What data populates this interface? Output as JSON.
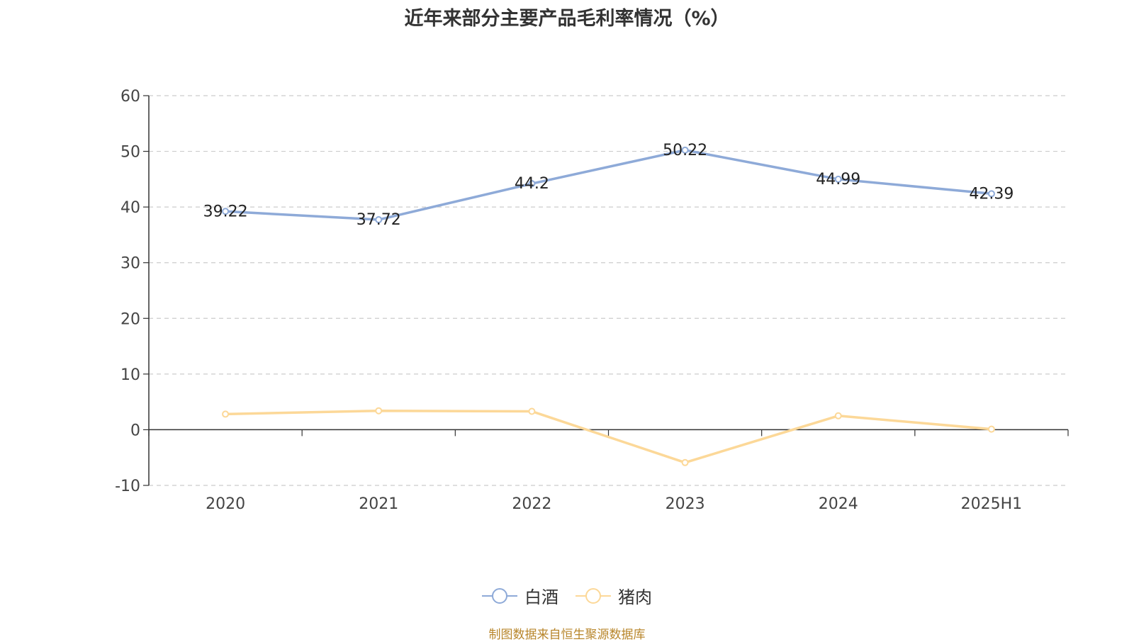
{
  "chart_data": {
    "type": "line",
    "title": "近年来部分主要产品毛利率情况（%）",
    "categories": [
      "2020",
      "2021",
      "2022",
      "2023",
      "2024",
      "2025H1"
    ],
    "series": [
      {
        "name": "白酒",
        "color": "#8eaad8",
        "values": [
          39.22,
          37.72,
          44.2,
          50.22,
          44.99,
          42.39
        ],
        "labels": [
          "39.22",
          "37.72",
          "44.2",
          "50.22",
          "44.99",
          "42.39"
        ],
        "show_labels": true
      },
      {
        "name": "猪肉",
        "color": "#fcd898",
        "values": [
          2.8,
          3.4,
          3.3,
          -5.9,
          2.5,
          0.1
        ],
        "show_labels": false
      }
    ],
    "yticks": [
      "60",
      "50",
      "40",
      "30",
      "20",
      "10",
      "0",
      "-10"
    ],
    "ylim": [
      -10,
      60
    ],
    "grid": true,
    "legend_position": "bottom-center"
  },
  "source_note": "制图数据来自恒生聚源数据库"
}
